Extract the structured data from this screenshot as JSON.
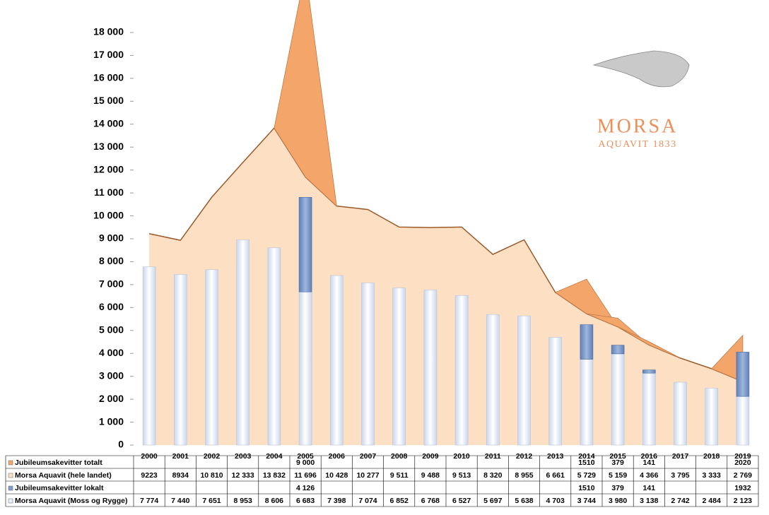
{
  "chart_data": {
    "type": "bar",
    "categories": [
      "2000",
      "2001",
      "2002",
      "2003",
      "2004",
      "2005",
      "2006",
      "2007",
      "2008",
      "2009",
      "2010",
      "2011",
      "2012",
      "2013",
      "2014",
      "2015",
      "2016",
      "2017",
      "2018",
      "2019"
    ],
    "series": [
      {
        "name": "Jubileumsakevitter totalt",
        "color": "#f4a56a",
        "kind": "area",
        "values": [
          null,
          null,
          null,
          null,
          null,
          9000,
          null,
          null,
          null,
          null,
          null,
          null,
          null,
          null,
          1510,
          379,
          141,
          null,
          null,
          2020
        ],
        "value_labels": [
          null,
          null,
          null,
          null,
          null,
          "9 000",
          null,
          null,
          null,
          null,
          null,
          null,
          null,
          null,
          "1510",
          "379",
          "141",
          null,
          null,
          "2020"
        ]
      },
      {
        "name": "Morsa Aquavit (hele landet)",
        "color": "#fde0c4",
        "kind": "area",
        "values": [
          9223,
          8934,
          10810,
          12333,
          13832,
          11696,
          10428,
          10277,
          9511,
          9488,
          9513,
          8320,
          8955,
          6661,
          5729,
          5159,
          4366,
          3795,
          3333,
          2769
        ],
        "value_labels": [
          "9223",
          "8934",
          "10 810",
          "12 333",
          "13 832",
          "11 696",
          "10 428",
          "10 277",
          "9 511",
          "9 488",
          "9 513",
          "8 320",
          "8 955",
          "6 661",
          "5 729",
          "5 159",
          "4 366",
          "3 795",
          "3 333",
          "2 769"
        ]
      },
      {
        "name": "Jubileumsakevitter lokalt",
        "color": "#7f9ccb",
        "kind": "column",
        "values": [
          null,
          null,
          null,
          null,
          null,
          4126,
          null,
          null,
          null,
          null,
          null,
          null,
          null,
          null,
          1510,
          379,
          141,
          null,
          null,
          1932
        ],
        "value_labels": [
          null,
          null,
          null,
          null,
          null,
          "4 126",
          null,
          null,
          null,
          null,
          null,
          null,
          null,
          null,
          "1510",
          "379",
          "141",
          null,
          null,
          "1932"
        ]
      },
      {
        "name": "Morsa Aquavit (Moss og Rygge)",
        "color": "#e8eef8",
        "kind": "column",
        "values": [
          7774,
          7440,
          7651,
          8953,
          8606,
          6683,
          7398,
          7074,
          6852,
          6768,
          6527,
          5697,
          5638,
          4703,
          3744,
          3980,
          3138,
          2742,
          2484,
          2123
        ],
        "value_labels": [
          "7 774",
          "7 440",
          "7 651",
          "8 953",
          "8 606",
          "6 683",
          "7 398",
          "7 074",
          "6 852",
          "6 768",
          "6 527",
          "5 697",
          "5 638",
          "4 703",
          "3 744",
          "3 980",
          "3 138",
          "2 742",
          "2 484",
          "2 123"
        ]
      }
    ],
    "ylim": [
      0,
      18000
    ],
    "yticks": [
      0,
      {
        "value": 1000,
        "label": "1 000"
      },
      {
        "value": 2000,
        "label": "2 000"
      },
      {
        "value": 3000,
        "label": "3 000"
      },
      {
        "value": 4000,
        "label": "4 000"
      },
      {
        "value": 5000,
        "label": "5 000"
      },
      {
        "value": 6000,
        "label": "6 000"
      },
      {
        "value": 7000,
        "label": "7 000"
      },
      {
        "value": 8000,
        "label": "8 000"
      },
      {
        "value": 9000,
        "label": "9 000"
      },
      {
        "value": 10000,
        "label": "10 000"
      },
      {
        "value": 11000,
        "label": "11 000"
      },
      {
        "value": 12000,
        "label": "12 000"
      },
      {
        "value": 13000,
        "label": "13 000"
      },
      {
        "value": 14000,
        "label": "14 000"
      },
      {
        "value": 15000,
        "label": "15 000"
      },
      {
        "value": 16000,
        "label": "16 000"
      },
      {
        "value": 17000,
        "label": "17 000"
      },
      {
        "value": 18000,
        "label": "18 000"
      }
    ],
    "grid": false,
    "logo": {
      "name": "MORSA",
      "tagline": "AQUAVIT 1833"
    }
  }
}
